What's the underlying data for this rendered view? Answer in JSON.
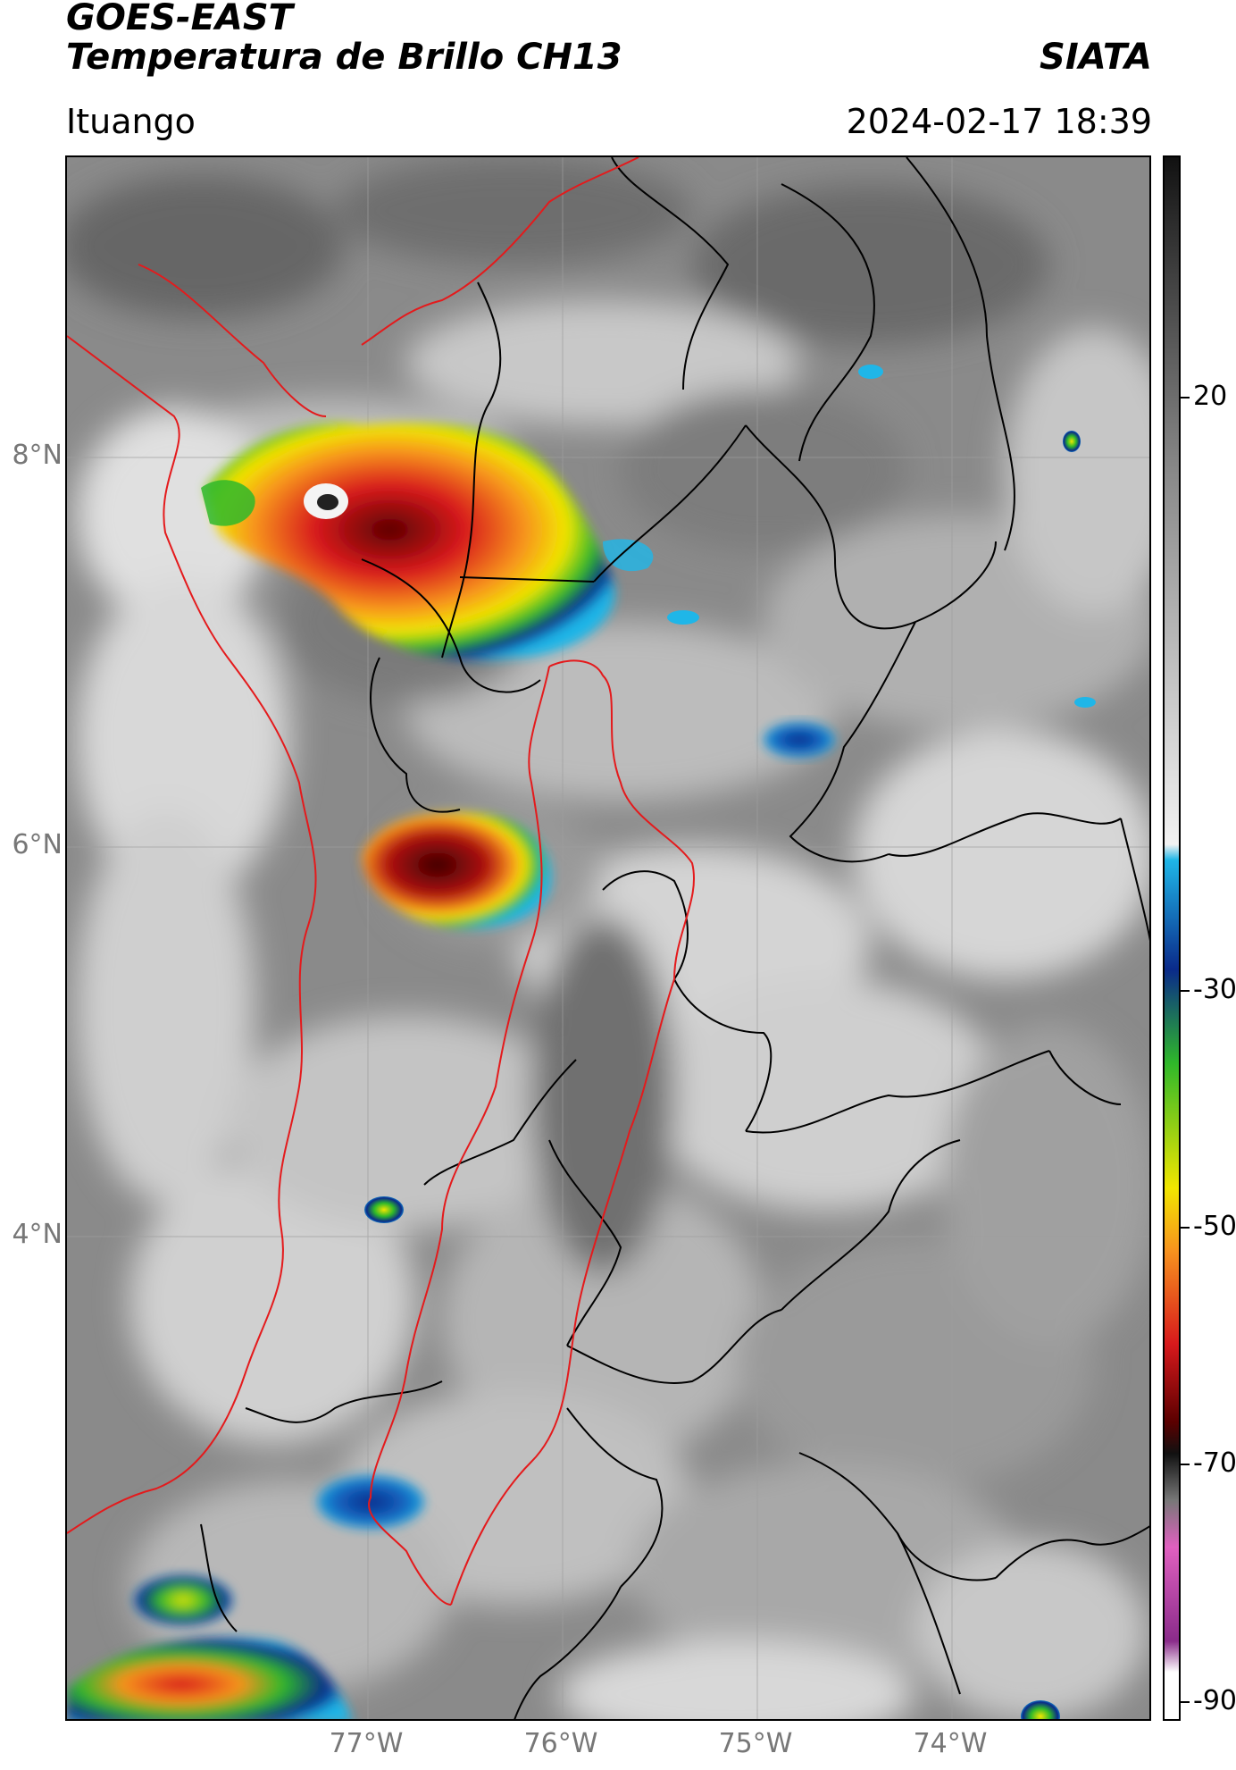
{
  "header": {
    "title_line1": "GOES-EAST",
    "title_line2": "Temperatura de Brillo CH13",
    "brand": "SIATA",
    "region": "Ituango",
    "timestamp": "2024-02-17 18:39"
  },
  "map": {
    "lat_labels": [
      "8°N",
      "6°N",
      "4°N"
    ],
    "lon_labels": [
      "77°W",
      "76°W",
      "75°W",
      "74°W"
    ],
    "border_colors": {
      "department": "#000000",
      "ituango_zone": "#e41a1c"
    }
  },
  "colorbar": {
    "tick_labels": [
      "20",
      "-30",
      "-50",
      "-70",
      "-90"
    ],
    "range": [
      -90,
      50
    ],
    "colors": {
      "warm_gray": "#2b2b2b",
      "light": "#f2f2f2",
      "cyan": "#1fb6e8",
      "blue": "#0a2a8a",
      "green": "#2fb82a",
      "yellow": "#f2e600",
      "orange": "#f7931e",
      "red": "#d7191c",
      "dark_red": "#5a0000",
      "black": "#111111",
      "pink": "#e060c0",
      "purple": "#8a2b8a"
    }
  }
}
